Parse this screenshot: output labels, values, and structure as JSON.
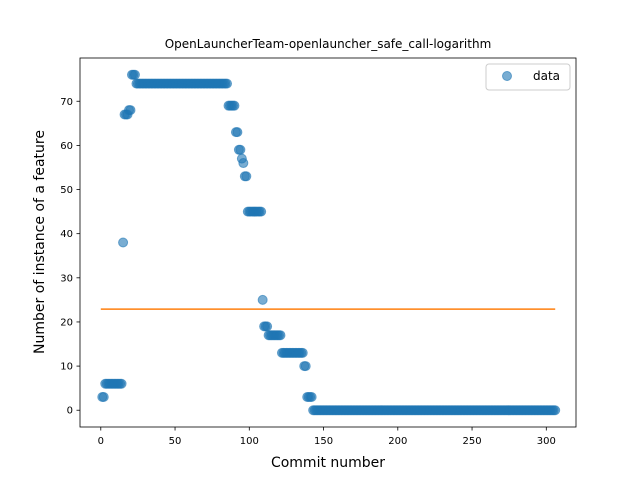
{
  "chart_data": {
    "type": "scatter",
    "title": "OpenLauncherTeam-openlauncher_safe_call-logarithm",
    "xlabel": "Commit number",
    "ylabel": "Number of instance of a feature",
    "xlim": [
      -14,
      320
    ],
    "ylim": [
      -3.8,
      79.8
    ],
    "xticks": [
      0,
      50,
      100,
      150,
      200,
      250,
      300
    ],
    "yticks": [
      0,
      10,
      20,
      30,
      40,
      50,
      60,
      70
    ],
    "grid": false,
    "legend_position": "upper right",
    "series": [
      {
        "name": "data",
        "kind": "points",
        "color": "#1f77b4",
        "segments": [
          {
            "x_start": 1,
            "x_end": 2,
            "y": 3
          },
          {
            "x_start": 3,
            "x_end": 14,
            "y": 6
          },
          {
            "x_start": 15,
            "x_end": 15,
            "y": 38
          },
          {
            "x_start": 16,
            "x_end": 18,
            "y": 67
          },
          {
            "x_start": 19,
            "x_end": 20,
            "y": 68
          },
          {
            "x_start": 21,
            "x_end": 23,
            "y": 76
          },
          {
            "x_start": 24,
            "x_end": 85,
            "y": 74
          },
          {
            "x_start": 86,
            "x_end": 90,
            "y": 69
          },
          {
            "x_start": 91,
            "x_end": 92,
            "y": 63
          },
          {
            "x_start": 93,
            "x_end": 94,
            "y": 59
          },
          {
            "x_start": 95,
            "x_end": 95,
            "y": 57
          },
          {
            "x_start": 96,
            "x_end": 96,
            "y": 56
          },
          {
            "x_start": 97,
            "x_end": 98,
            "y": 53
          },
          {
            "x_start": 99,
            "x_end": 108,
            "y": 45
          },
          {
            "x_start": 109,
            "x_end": 109,
            "y": 25
          },
          {
            "x_start": 110,
            "x_end": 112,
            "y": 19
          },
          {
            "x_start": 113,
            "x_end": 121,
            "y": 17
          },
          {
            "x_start": 122,
            "x_end": 136,
            "y": 13
          },
          {
            "x_start": 137,
            "x_end": 138,
            "y": 10
          },
          {
            "x_start": 139,
            "x_end": 142,
            "y": 3
          },
          {
            "x_start": 143,
            "x_end": 306,
            "y": 0
          }
        ]
      },
      {
        "name": "",
        "kind": "line",
        "color": "#ff7f0e",
        "x": [
          0,
          306
        ],
        "y": [
          22.9,
          22.9
        ]
      }
    ]
  },
  "legend": {
    "label": "data"
  }
}
